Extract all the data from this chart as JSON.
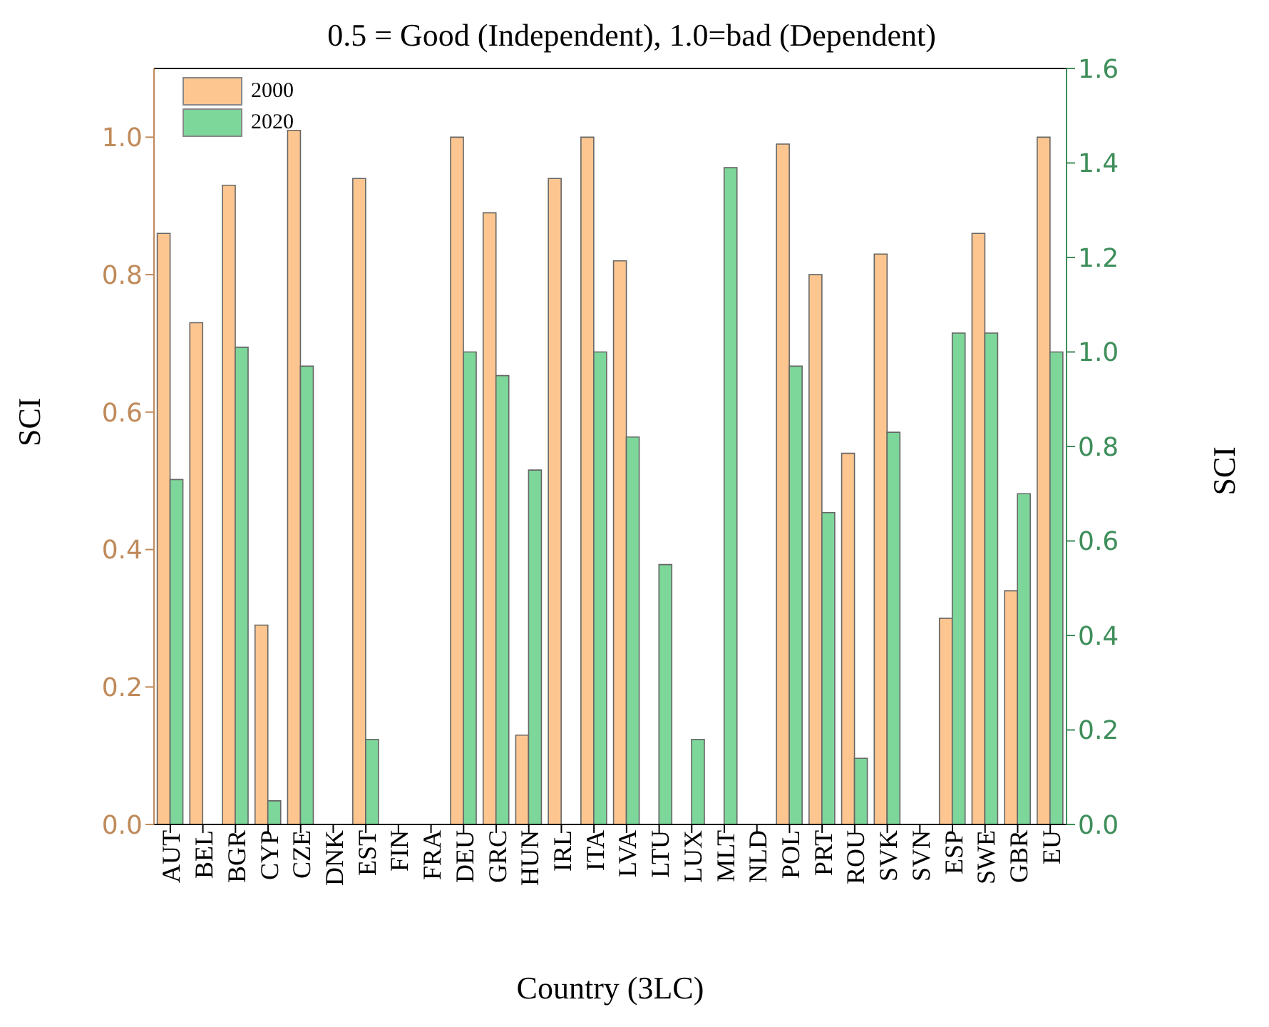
{
  "chart_data": {
    "type": "bar",
    "title": "0.5 = Good (Independent), 1.0=bad (Dependent)",
    "xlabel": "Country (3LC)",
    "ylabel": "SCI",
    "y2label": "SCI",
    "categories": [
      "AUT",
      "BEL",
      "BGR",
      "CYP",
      "CZE",
      "DNK",
      "EST",
      "FIN",
      "FRA",
      "DEU",
      "GRC",
      "HUN",
      "IRL",
      "ITA",
      "LVA",
      "LTU",
      "LUX",
      "MLT",
      "NLD",
      "POL",
      "PRT",
      "ROU",
      "SVK",
      "SVN",
      "ESP",
      "SWE",
      "GBR",
      "EU"
    ],
    "series": [
      {
        "name": "2000",
        "color": "#fdc690",
        "values": [
          0.86,
          0.73,
          0.93,
          0.29,
          1.01,
          null,
          0.94,
          null,
          null,
          1.0,
          0.89,
          0.13,
          0.94,
          1.0,
          0.82,
          null,
          null,
          null,
          null,
          0.99,
          0.8,
          0.54,
          0.83,
          null,
          0.3,
          0.86,
          0.34,
          1.0
        ]
      },
      {
        "name": "2020",
        "color": "#7dd69a",
        "axis": "y2",
        "values": [
          0.73,
          null,
          1.01,
          0.05,
          0.97,
          null,
          0.18,
          null,
          null,
          1.0,
          0.95,
          0.75,
          null,
          1.0,
          0.82,
          0.55,
          0.18,
          1.39,
          null,
          0.97,
          0.66,
          0.14,
          0.83,
          null,
          1.04,
          1.04,
          0.7,
          1.0
        ]
      }
    ],
    "ylim": [
      0,
      1.1
    ],
    "yticks": [
      {
        "value": 0,
        "label": "0.0"
      },
      {
        "value": 0.2,
        "label": "0.2"
      },
      {
        "value": 0.4,
        "label": "0.4"
      },
      {
        "value": 0.6,
        "label": "0.6"
      },
      {
        "value": 0.8,
        "label": "0.8"
      },
      {
        "value": 1,
        "label": "1.0"
      }
    ],
    "y2lim": [
      0,
      1.6
    ],
    "y2ticks": [
      {
        "value": 0,
        "label": "0.0"
      },
      {
        "value": 0.2,
        "label": "0.2"
      },
      {
        "value": 0.4,
        "label": "0.4"
      },
      {
        "value": 0.6,
        "label": "0.6"
      },
      {
        "value": 0.8,
        "label": "0.8"
      },
      {
        "value": 1,
        "label": "1.0"
      },
      {
        "value": 1.2,
        "label": "1.2"
      },
      {
        "value": 1.4,
        "label": "1.4"
      },
      {
        "value": 1.6,
        "label": "1.6"
      }
    ],
    "legend": "top left",
    "grid": false
  }
}
